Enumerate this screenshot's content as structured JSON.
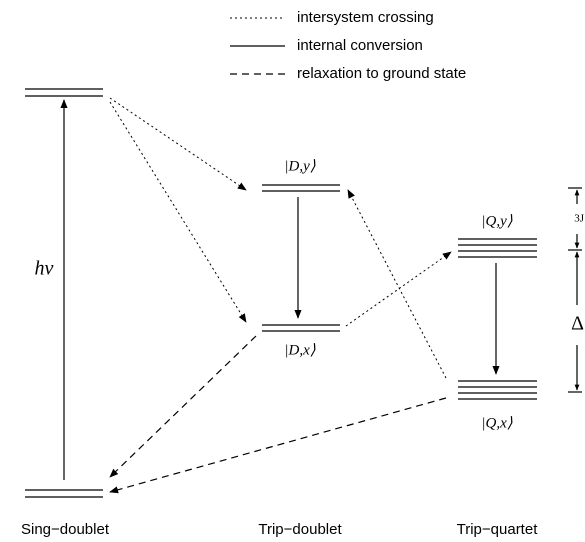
{
  "legend": [
    "intersystem crossing",
    "internal conversion",
    "relaxation to ground state"
  ],
  "states": {
    "dy": "|D,y⟩",
    "dx": "|D,x⟩",
    "qy": "|Q,y⟩",
    "qx": "|Q,x⟩"
  },
  "excitation": "hν",
  "scale": {
    "upper": "3J",
    "lower": "Δ"
  },
  "columns": [
    "Sing−doublet",
    "Trip−doublet",
    "Trip−quartet"
  ]
}
